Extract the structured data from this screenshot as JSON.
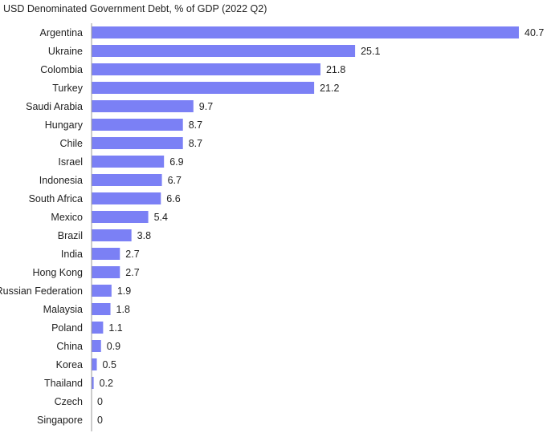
{
  "chart_data": {
    "type": "bar",
    "orientation": "horizontal",
    "title": "USD Denominated Government Debt, % of GDP (2022 Q2)",
    "categories": [
      "Argentina",
      "Ukraine",
      "Colombia",
      "Turkey",
      "Saudi Arabia",
      "Hungary",
      "Chile",
      "Israel",
      "Indonesia",
      "South Africa",
      "Mexico",
      "Brazil",
      "India",
      "Hong Kong",
      "Russian Federation",
      "Malaysia",
      "Poland",
      "China",
      "Korea",
      "Thailand",
      "Czech",
      "Singapore"
    ],
    "values": [
      40.7,
      25.1,
      21.8,
      21.2,
      9.7,
      8.7,
      8.7,
      6.9,
      6.7,
      6.6,
      5.4,
      3.8,
      2.7,
      2.7,
      1.9,
      1.8,
      1.1,
      0.9,
      0.5,
      0.2,
      0,
      0
    ],
    "value_labels": [
      "40.7",
      "25.1",
      "21.8",
      "21.2",
      "9.7",
      "8.7",
      "8.7",
      "6.9",
      "6.7",
      "6.6",
      "5.4",
      "3.8",
      "2.7",
      "2.7",
      "1.9",
      "1.8",
      "1.1",
      "0.9",
      "0.5",
      "0.2",
      "0",
      "0"
    ],
    "xlim": [
      0,
      40.7
    ],
    "bar_color": "#7b80f5",
    "axis_color": "#999999",
    "grid": false,
    "legend": "none"
  }
}
